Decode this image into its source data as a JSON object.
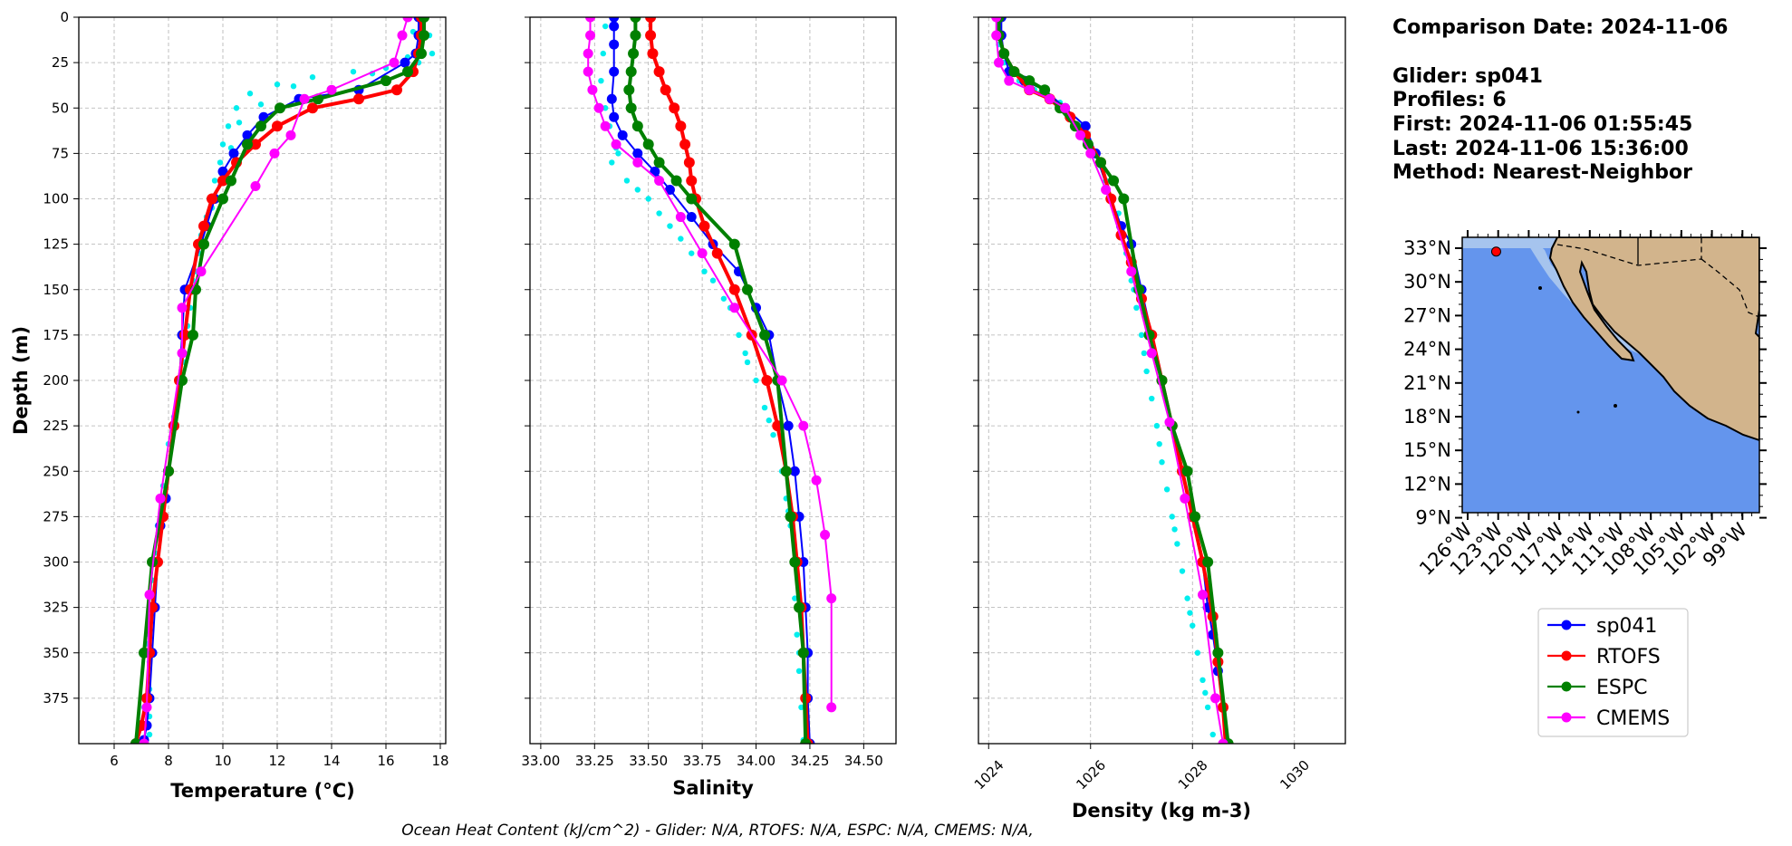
{
  "info": {
    "lines": [
      "Comparison Date: 2024-11-06",
      "",
      "Glider: sp041",
      "Profiles: 6",
      "First: 2024-11-06 01:55:45",
      "Last: 2024-11-06 15:36:00",
      "Method: Nearest-Neighbor"
    ]
  },
  "footer": "Ocean Heat Content (kJ/cm^2) - Glider: N/A,  RTOFS: N/A,  ESPC: N/A,  CMEMS: N/A,",
  "colors": {
    "glider_raw": "#00eeee",
    "sp041": "#0000ff",
    "RTOFS": "#ff0000",
    "ESPC": "#008000",
    "CMEMS": "#ff00ff",
    "ocean": "#6495ed",
    "shelf": "#a6c4ee",
    "land": "#d2b48c"
  },
  "legend": [
    {
      "label": "sp041",
      "color": "#0000ff"
    },
    {
      "label": "RTOFS",
      "color": "#ff0000"
    },
    {
      "label": "ESPC",
      "color": "#008000"
    },
    {
      "label": "CMEMS",
      "color": "#ff00ff"
    }
  ],
  "map": {
    "lat_ticks": [
      "33°N",
      "30°N",
      "27°N",
      "24°N",
      "21°N",
      "18°N",
      "15°N",
      "12°N",
      "9°N"
    ],
    "lon_ticks": [
      "126°W",
      "123°W",
      "120°W",
      "117°W",
      "114°W",
      "111°W",
      "108°W",
      "105°W",
      "102°W",
      "99°W"
    ],
    "glider_position": {
      "lon": -123.2,
      "lat": 32.7
    }
  },
  "chart_data": [
    {
      "type": "line",
      "xlabel": "Temperature (°C)",
      "ylabel": "Depth (m)",
      "xlim": [
        4.7,
        18.2
      ],
      "ylim": [
        400,
        0
      ],
      "xticks": [
        6,
        8,
        10,
        12,
        14,
        16,
        18
      ],
      "yticks": [
        0,
        25,
        50,
        75,
        100,
        125,
        150,
        175,
        200,
        225,
        250,
        275,
        300,
        325,
        350,
        375
      ],
      "grid": true,
      "raw_glider_points": [
        [
          17.4,
          0
        ],
        [
          17.6,
          10
        ],
        [
          17.7,
          20
        ],
        [
          17.2,
          25
        ],
        [
          16.0,
          28
        ],
        [
          14.8,
          30
        ],
        [
          13.3,
          33
        ],
        [
          12.0,
          37
        ],
        [
          11.0,
          42
        ],
        [
          10.5,
          50
        ],
        [
          10.2,
          60
        ],
        [
          10.0,
          70
        ],
        [
          9.9,
          80
        ],
        [
          9.7,
          90
        ],
        [
          9.5,
          100
        ],
        [
          9.4,
          110
        ],
        [
          9.2,
          120
        ],
        [
          9.1,
          130
        ],
        [
          8.9,
          145
        ],
        [
          8.8,
          160
        ],
        [
          8.7,
          175
        ],
        [
          8.6,
          190
        ],
        [
          8.4,
          205
        ],
        [
          8.2,
          220
        ],
        [
          8.0,
          235
        ],
        [
          7.9,
          250
        ],
        [
          7.7,
          265
        ],
        [
          7.6,
          280
        ],
        [
          7.5,
          295
        ],
        [
          7.4,
          310
        ],
        [
          7.4,
          325
        ],
        [
          7.3,
          340
        ],
        [
          7.3,
          355
        ],
        [
          7.3,
          370
        ],
        [
          7.3,
          385
        ],
        [
          7.3,
          395
        ],
        [
          17.0,
          8
        ],
        [
          16.8,
          22
        ],
        [
          15.5,
          31
        ],
        [
          12.6,
          38
        ],
        [
          11.4,
          48
        ],
        [
          10.6,
          58
        ],
        [
          10.3,
          72
        ],
        [
          10.0,
          88
        ],
        [
          9.6,
          105
        ],
        [
          9.3,
          125
        ],
        [
          9.0,
          140
        ],
        [
          8.7,
          170
        ],
        [
          8.3,
          215
        ],
        [
          7.8,
          258
        ],
        [
          7.5,
          300
        ],
        [
          7.2,
          345
        ],
        [
          7.1,
          380
        ]
      ],
      "series": [
        {
          "name": "sp041",
          "x": [
            17.2,
            17.2,
            17.1,
            16.7,
            15.0,
            12.8,
            11.5,
            10.9,
            10.4,
            10.0,
            9.7,
            9.4,
            9.2,
            8.6,
            8.5,
            8.4,
            8.2,
            8.0,
            7.9,
            7.7,
            7.6,
            7.5,
            7.4,
            7.3,
            7.2,
            7.1
          ],
          "y": [
            0,
            10,
            20,
            25,
            40,
            45,
            55,
            65,
            75,
            85,
            100,
            115,
            125,
            150,
            175,
            200,
            225,
            250,
            265,
            280,
            300,
            325,
            350,
            375,
            390,
            398
          ]
        },
        {
          "name": "RTOFS",
          "x": [
            17.3,
            17.3,
            17.2,
            17.0,
            16.4,
            15.0,
            13.3,
            12.0,
            11.2,
            10.5,
            10.0,
            9.6,
            9.3,
            9.1,
            8.8,
            8.6,
            8.4,
            8.2,
            8.0,
            7.8,
            7.6,
            7.4,
            7.3,
            7.2,
            7.0,
            6.8
          ],
          "y": [
            0,
            10,
            20,
            30,
            40,
            45,
            50,
            60,
            70,
            80,
            90,
            100,
            115,
            125,
            150,
            175,
            200,
            225,
            250,
            275,
            300,
            325,
            350,
            375,
            390,
            400
          ]
        },
        {
          "name": "ESPC",
          "x": [
            17.4,
            17.4,
            17.3,
            16.8,
            16.0,
            13.5,
            12.1,
            11.4,
            10.9,
            10.3,
            10.0,
            9.3,
            9.0,
            8.9,
            8.5,
            8.0,
            7.4,
            7.1,
            6.8
          ],
          "y": [
            0,
            10,
            20,
            30,
            35,
            45,
            50,
            60,
            70,
            90,
            100,
            125,
            150,
            175,
            200,
            250,
            300,
            350,
            400
          ]
        },
        {
          "name": "CMEMS",
          "x": [
            16.8,
            16.6,
            16.3,
            14.0,
            13.0,
            12.5,
            11.9,
            11.2,
            9.2,
            8.5,
            8.5,
            7.7,
            7.3,
            7.2,
            7.1
          ],
          "y": [
            0,
            10,
            25,
            40,
            45,
            65,
            75,
            93,
            140,
            160,
            185,
            265,
            318,
            380,
            400
          ]
        }
      ]
    },
    {
      "type": "line",
      "xlabel": "Salinity",
      "xlim": [
        32.95,
        34.65
      ],
      "ylim": [
        400,
        0
      ],
      "xticks": [
        "33.00",
        "33.25",
        "33.50",
        "33.75",
        "34.00",
        "34.25",
        "34.50"
      ],
      "grid": true,
      "raw_glider_points": [
        [
          33.3,
          5
        ],
        [
          33.29,
          20
        ],
        [
          33.28,
          35
        ],
        [
          33.3,
          50
        ],
        [
          33.32,
          60
        ],
        [
          33.35,
          72
        ],
        [
          33.33,
          80
        ],
        [
          33.4,
          90
        ],
        [
          33.5,
          100
        ],
        [
          33.6,
          115
        ],
        [
          33.7,
          130
        ],
        [
          33.8,
          145
        ],
        [
          33.88,
          160
        ],
        [
          33.92,
          175
        ],
        [
          33.96,
          190
        ],
        [
          34.0,
          200
        ],
        [
          34.04,
          215
        ],
        [
          34.08,
          230
        ],
        [
          34.12,
          250
        ],
        [
          34.14,
          265
        ],
        [
          34.16,
          280
        ],
        [
          34.17,
          300
        ],
        [
          34.18,
          320
        ],
        [
          34.19,
          340
        ],
        [
          34.2,
          360
        ],
        [
          34.21,
          380
        ],
        [
          34.22,
          398
        ],
        [
          33.36,
          75
        ],
        [
          33.45,
          95
        ],
        [
          33.55,
          108
        ],
        [
          33.65,
          122
        ],
        [
          33.76,
          140
        ],
        [
          33.85,
          155
        ],
        [
          33.95,
          185
        ],
        [
          34.06,
          222
        ],
        [
          34.15,
          272
        ],
        [
          34.2,
          350
        ]
      ],
      "series": [
        {
          "name": "sp041",
          "x": [
            33.34,
            33.34,
            33.34,
            33.34,
            33.33,
            33.34,
            33.38,
            33.45,
            33.53,
            33.6,
            33.7,
            33.8,
            33.92,
            34.0,
            34.06,
            34.1,
            34.15,
            34.18,
            34.2,
            34.22,
            34.23,
            34.24,
            34.24,
            34.25
          ],
          "y": [
            0,
            5,
            15,
            30,
            45,
            55,
            65,
            75,
            85,
            95,
            110,
            125,
            140,
            160,
            175,
            200,
            225,
            250,
            275,
            300,
            325,
            350,
            375,
            400
          ]
        },
        {
          "name": "RTOFS",
          "x": [
            33.51,
            33.51,
            33.52,
            33.55,
            33.58,
            33.62,
            33.65,
            33.67,
            33.69,
            33.7,
            33.72,
            33.76,
            33.82,
            33.9,
            33.98,
            34.05,
            34.1,
            34.14,
            34.17,
            34.19,
            34.21,
            34.22,
            34.23,
            34.24
          ],
          "y": [
            0,
            10,
            20,
            30,
            40,
            50,
            60,
            70,
            80,
            90,
            100,
            115,
            130,
            150,
            175,
            200,
            225,
            250,
            275,
            300,
            325,
            350,
            375,
            400
          ]
        },
        {
          "name": "ESPC",
          "x": [
            33.44,
            33.44,
            33.43,
            33.42,
            33.41,
            33.42,
            33.45,
            33.5,
            33.55,
            33.63,
            33.7,
            33.9,
            33.96,
            34.04,
            34.1,
            34.14,
            34.16,
            34.18,
            34.2,
            34.22,
            34.23
          ],
          "y": [
            0,
            10,
            20,
            30,
            40,
            50,
            60,
            70,
            80,
            90,
            100,
            125,
            150,
            175,
            200,
            250,
            275,
            300,
            325,
            350,
            400
          ]
        },
        {
          "name": "CMEMS",
          "x": [
            33.23,
            33.23,
            33.22,
            33.22,
            33.24,
            33.27,
            33.3,
            33.35,
            33.45,
            33.55,
            33.65,
            33.75,
            33.9,
            34.12,
            34.22,
            34.28,
            34.32,
            34.35,
            34.35
          ],
          "y": [
            0,
            10,
            20,
            30,
            40,
            50,
            60,
            70,
            80,
            90,
            110,
            130,
            160,
            200,
            225,
            255,
            285,
            320,
            380
          ]
        }
      ]
    },
    {
      "type": "line",
      "xlabel": "Density (kg m-3)",
      "xlim": [
        1023.8,
        1031.0
      ],
      "ylim": [
        400,
        0
      ],
      "xticks": [
        "1024",
        "1026",
        "1028",
        "1030"
      ],
      "grid": true,
      "raw_glider_points": [
        [
          1024.2,
          0
        ],
        [
          1024.2,
          15
        ],
        [
          1024.3,
          25
        ],
        [
          1024.6,
          35
        ],
        [
          1025.0,
          42
        ],
        [
          1025.5,
          50
        ],
        [
          1025.8,
          60
        ],
        [
          1026.1,
          75
        ],
        [
          1026.3,
          90
        ],
        [
          1026.45,
          100
        ],
        [
          1026.6,
          115
        ],
        [
          1026.7,
          130
        ],
        [
          1026.8,
          145
        ],
        [
          1026.9,
          160
        ],
        [
          1027.0,
          175
        ],
        [
          1027.1,
          195
        ],
        [
          1027.2,
          210
        ],
        [
          1027.3,
          225
        ],
        [
          1027.4,
          245
        ],
        [
          1027.5,
          260
        ],
        [
          1027.6,
          275
        ],
        [
          1027.7,
          290
        ],
        [
          1027.8,
          305
        ],
        [
          1027.9,
          320
        ],
        [
          1028.0,
          335
        ],
        [
          1028.1,
          350
        ],
        [
          1028.2,
          365
        ],
        [
          1028.3,
          380
        ],
        [
          1028.4,
          395
        ],
        [
          1024.9,
          40
        ],
        [
          1025.4,
          47
        ],
        [
          1025.9,
          68
        ],
        [
          1026.2,
          82
        ],
        [
          1026.55,
          108
        ],
        [
          1026.85,
          150
        ],
        [
          1027.05,
          185
        ],
        [
          1027.35,
          235
        ],
        [
          1027.65,
          282
        ],
        [
          1027.95,
          328
        ],
        [
          1028.25,
          372
        ]
      ],
      "series": [
        {
          "name": "sp041",
          "x": [
            1024.25,
            1024.25,
            1024.3,
            1024.4,
            1024.7,
            1025.1,
            1025.5,
            1025.9,
            1026.1,
            1026.4,
            1026.6,
            1026.8,
            1027.0,
            1027.2,
            1027.4,
            1027.6,
            1027.8,
            1028.0,
            1028.2,
            1028.3,
            1028.4,
            1028.5,
            1028.6,
            1028.65
          ],
          "y": [
            0,
            10,
            20,
            30,
            35,
            40,
            50,
            60,
            75,
            100,
            115,
            125,
            150,
            175,
            200,
            225,
            250,
            275,
            300,
            325,
            340,
            360,
            380,
            400
          ]
        },
        {
          "name": "RTOFS",
          "x": [
            1024.2,
            1024.2,
            1024.3,
            1024.5,
            1024.8,
            1025.2,
            1025.6,
            1025.9,
            1026.2,
            1026.4,
            1026.6,
            1026.8,
            1027.0,
            1027.2,
            1027.4,
            1027.6,
            1027.8,
            1028.0,
            1028.2,
            1028.4,
            1028.5,
            1028.6,
            1028.65
          ],
          "y": [
            0,
            10,
            20,
            30,
            40,
            45,
            55,
            65,
            80,
            100,
            120,
            135,
            155,
            175,
            200,
            225,
            250,
            275,
            300,
            330,
            355,
            380,
            400
          ]
        },
        {
          "name": "ESPC",
          "x": [
            1024.2,
            1024.2,
            1024.3,
            1024.5,
            1024.8,
            1025.1,
            1025.4,
            1025.7,
            1025.95,
            1026.2,
            1026.45,
            1026.65,
            1026.95,
            1027.15,
            1027.4,
            1027.6,
            1027.9,
            1028.05,
            1028.3,
            1028.5,
            1028.7
          ],
          "y": [
            0,
            10,
            20,
            30,
            35,
            40,
            50,
            60,
            70,
            80,
            90,
            100,
            150,
            175,
            200,
            225,
            250,
            275,
            300,
            350,
            400
          ]
        },
        {
          "name": "CMEMS",
          "x": [
            1024.15,
            1024.15,
            1024.2,
            1024.4,
            1024.8,
            1025.2,
            1025.5,
            1025.8,
            1026.0,
            1026.3,
            1026.8,
            1027.2,
            1027.55,
            1027.85,
            1028.2,
            1028.45,
            1028.6
          ],
          "y": [
            0,
            10,
            25,
            35,
            40,
            45,
            50,
            65,
            75,
            95,
            140,
            185,
            223,
            265,
            318,
            375,
            400
          ]
        }
      ]
    }
  ]
}
